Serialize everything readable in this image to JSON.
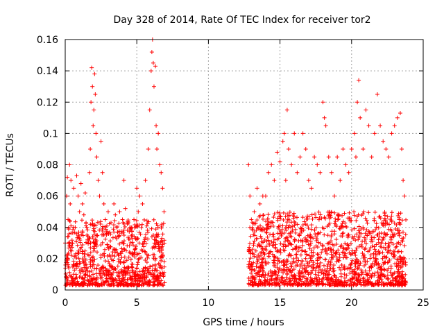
{
  "chart_data": {
    "type": "scatter",
    "title": "Day 328 of 2014, Rate Of TEC Index for receiver tor2",
    "xlabel": "GPS time / hours",
    "ylabel": "ROTI / TECUs",
    "xlim": [
      0,
      25
    ],
    "ylim": [
      0,
      0.16
    ],
    "xticks": [
      0,
      5,
      10,
      15,
      20,
      25
    ],
    "xtick_labels": [
      "0",
      "5",
      "10",
      "15",
      "20",
      "25"
    ],
    "yticks": [
      0,
      0.02,
      0.04,
      0.06,
      0.08,
      0.1,
      0.12,
      0.14,
      0.16
    ],
    "ytick_labels": [
      "0",
      "0.02",
      "0.04",
      "0.06",
      "0.08",
      "0.1",
      "0.12",
      "0.14",
      "0.16"
    ],
    "grid": true,
    "marker": "plus",
    "color": "#ff0000",
    "series": [
      {
        "points": [
          [
            0.0,
            0.03
          ],
          [
            0.1,
            0.06
          ],
          [
            0.15,
            0.072
          ],
          [
            0.2,
            0.045
          ],
          [
            0.3,
            0.08
          ],
          [
            0.35,
            0.055
          ],
          [
            0.4,
            0.07
          ],
          [
            0.5,
            0.03
          ],
          [
            0.6,
            0.065
          ],
          [
            0.7,
            0.04
          ],
          [
            0.8,
            0.073
          ],
          [
            0.9,
            0.06
          ],
          [
            1.0,
            0.05
          ],
          [
            1.1,
            0.068
          ],
          [
            1.2,
            0.055
          ],
          [
            1.3,
            0.048
          ],
          [
            1.4,
            0.062
          ],
          [
            1.5,
            0.04
          ],
          [
            1.6,
            0.03
          ],
          [
            1.7,
            0.075
          ],
          [
            1.75,
            0.09
          ],
          [
            1.8,
            0.12
          ],
          [
            1.85,
            0.142
          ],
          [
            1.9,
            0.13
          ],
          [
            1.95,
            0.105
          ],
          [
            2.0,
            0.115
          ],
          [
            2.05,
            0.138
          ],
          [
            2.1,
            0.125
          ],
          [
            2.15,
            0.1
          ],
          [
            2.2,
            0.085
          ],
          [
            2.3,
            0.07
          ],
          [
            2.4,
            0.06
          ],
          [
            2.5,
            0.095
          ],
          [
            2.6,
            0.075
          ],
          [
            2.7,
            0.055
          ],
          [
            2.8,
            0.045
          ],
          [
            3.0,
            0.05
          ],
          [
            3.2,
            0.043
          ],
          [
            3.4,
            0.055
          ],
          [
            3.5,
            0.048
          ],
          [
            3.6,
            0.04
          ],
          [
            3.8,
            0.05
          ],
          [
            4.0,
            0.045
          ],
          [
            4.1,
            0.07
          ],
          [
            4.2,
            0.052
          ],
          [
            4.4,
            0.043
          ],
          [
            4.6,
            0.04
          ],
          [
            4.8,
            0.045
          ],
          [
            5.0,
            0.065
          ],
          [
            5.1,
            0.05
          ],
          [
            5.2,
            0.06
          ],
          [
            5.4,
            0.055
          ],
          [
            5.6,
            0.07
          ],
          [
            5.8,
            0.09
          ],
          [
            5.9,
            0.115
          ],
          [
            6.0,
            0.14
          ],
          [
            6.05,
            0.152
          ],
          [
            6.1,
            0.16
          ],
          [
            6.15,
            0.145
          ],
          [
            6.2,
            0.13
          ],
          [
            6.3,
            0.143
          ],
          [
            6.35,
            0.105
          ],
          [
            6.4,
            0.09
          ],
          [
            6.5,
            0.1
          ],
          [
            6.6,
            0.08
          ],
          [
            6.7,
            0.075
          ],
          [
            6.8,
            0.065
          ],
          [
            6.9,
            0.05
          ],
          [
            12.8,
            0.08
          ],
          [
            12.9,
            0.06
          ],
          [
            13.0,
            0.045
          ],
          [
            13.2,
            0.05
          ],
          [
            13.4,
            0.065
          ],
          [
            13.6,
            0.055
          ],
          [
            13.8,
            0.06
          ],
          [
            14.0,
            0.06
          ],
          [
            14.2,
            0.075
          ],
          [
            14.4,
            0.08
          ],
          [
            14.6,
            0.07
          ],
          [
            14.8,
            0.088
          ],
          [
            15.0,
            0.082
          ],
          [
            15.2,
            0.095
          ],
          [
            15.3,
            0.1
          ],
          [
            15.4,
            0.07
          ],
          [
            15.5,
            0.115
          ],
          [
            15.6,
            0.09
          ],
          [
            15.8,
            0.08
          ],
          [
            16.0,
            0.1
          ],
          [
            16.2,
            0.075
          ],
          [
            16.4,
            0.085
          ],
          [
            16.6,
            0.1
          ],
          [
            16.8,
            0.09
          ],
          [
            17.0,
            0.07
          ],
          [
            17.2,
            0.065
          ],
          [
            17.4,
            0.085
          ],
          [
            17.6,
            0.08
          ],
          [
            17.8,
            0.075
          ],
          [
            18.0,
            0.12
          ],
          [
            18.1,
            0.11
          ],
          [
            18.2,
            0.105
          ],
          [
            18.4,
            0.085
          ],
          [
            18.6,
            0.075
          ],
          [
            18.8,
            0.06
          ],
          [
            19.0,
            0.085
          ],
          [
            19.2,
            0.07
          ],
          [
            19.4,
            0.09
          ],
          [
            19.6,
            0.08
          ],
          [
            19.8,
            0.075
          ],
          [
            20.0,
            0.09
          ],
          [
            20.2,
            0.1
          ],
          [
            20.3,
            0.085
          ],
          [
            20.4,
            0.12
          ],
          [
            20.5,
            0.134
          ],
          [
            20.6,
            0.11
          ],
          [
            20.8,
            0.09
          ],
          [
            21.0,
            0.115
          ],
          [
            21.2,
            0.105
          ],
          [
            21.4,
            0.085
          ],
          [
            21.6,
            0.1
          ],
          [
            21.8,
            0.125
          ],
          [
            22.0,
            0.105
          ],
          [
            22.2,
            0.095
          ],
          [
            22.4,
            0.09
          ],
          [
            22.6,
            0.085
          ],
          [
            22.8,
            0.1
          ],
          [
            23.0,
            0.105
          ],
          [
            23.2,
            0.11
          ],
          [
            23.4,
            0.113
          ],
          [
            23.5,
            0.09
          ],
          [
            23.6,
            0.07
          ],
          [
            23.7,
            0.06
          ]
        ],
        "baseline_note": ""
      }
    ],
    "clusters": [
      {
        "from": 0.0,
        "to": 6.95,
        "low": 0.003,
        "high": 0.045
      },
      {
        "from": 12.8,
        "to": 23.8,
        "low": 0.003,
        "high": 0.05
      }
    ]
  }
}
